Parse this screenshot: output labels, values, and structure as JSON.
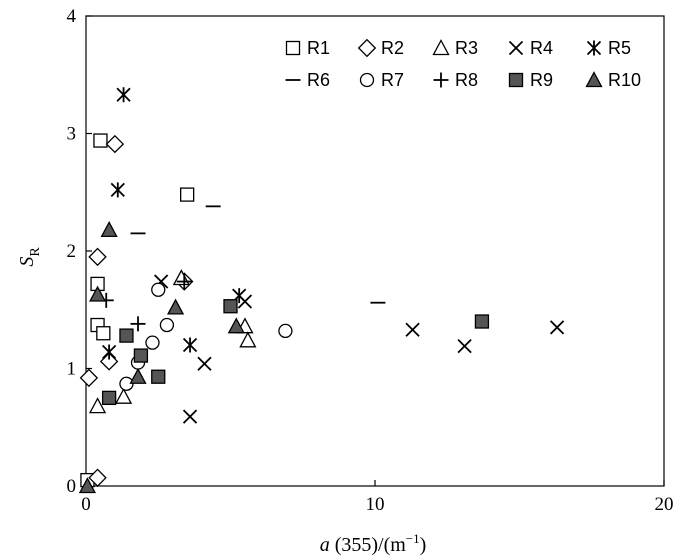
{
  "chart_data": {
    "type": "scatter",
    "title": "",
    "xlabel": {
      "italic": "a",
      "rest": " (355)/(m",
      "sup": "−1",
      "close": ")"
    },
    "ylabel": {
      "main": "S",
      "sub": "R"
    },
    "xlim": [
      0,
      20
    ],
    "ylim": [
      0,
      4
    ],
    "xticks": [
      "0",
      "10",
      "20"
    ],
    "yticks": [
      "0",
      "1",
      "2",
      "3",
      "4"
    ],
    "grid": false,
    "legend_position": "top-right",
    "series": [
      {
        "name": "R1",
        "marker": "square-open",
        "points": [
          [
            0.5,
            2.94
          ],
          [
            0.4,
            1.72
          ],
          [
            0.4,
            1.37
          ],
          [
            0.6,
            1.3
          ],
          [
            3.5,
            2.48
          ],
          [
            0.05,
            0.05
          ]
        ]
      },
      {
        "name": "R2",
        "marker": "diamond-open",
        "points": [
          [
            1.0,
            2.91
          ],
          [
            0.4,
            1.95
          ],
          [
            0.8,
            1.06
          ],
          [
            0.1,
            0.92
          ],
          [
            0.4,
            0.07
          ],
          [
            3.4,
            1.74
          ]
        ]
      },
      {
        "name": "R3",
        "marker": "triangle-open",
        "points": [
          [
            1.3,
            0.76
          ],
          [
            0.4,
            0.68
          ],
          [
            5.5,
            1.36
          ],
          [
            5.6,
            1.24
          ],
          [
            3.3,
            1.77
          ]
        ]
      },
      {
        "name": "R4",
        "marker": "x",
        "points": [
          [
            2.6,
            1.74
          ],
          [
            4.1,
            1.04
          ],
          [
            3.6,
            0.59
          ],
          [
            5.5,
            1.57
          ],
          [
            11.3,
            1.33
          ],
          [
            13.1,
            1.19
          ],
          [
            16.3,
            1.35
          ]
        ]
      },
      {
        "name": "R5",
        "marker": "asterisk",
        "points": [
          [
            1.3,
            3.33
          ],
          [
            1.1,
            2.52
          ],
          [
            0.8,
            1.14
          ],
          [
            3.6,
            1.2
          ],
          [
            5.3,
            1.62
          ]
        ]
      },
      {
        "name": "R6",
        "marker": "dash",
        "points": [
          [
            1.8,
            2.15
          ],
          [
            4.4,
            2.38
          ],
          [
            10.1,
            1.56
          ]
        ]
      },
      {
        "name": "R7",
        "marker": "circle-open",
        "points": [
          [
            2.5,
            1.67
          ],
          [
            2.8,
            1.37
          ],
          [
            2.3,
            1.22
          ],
          [
            1.8,
            1.05
          ],
          [
            1.4,
            0.87
          ],
          [
            6.9,
            1.32
          ]
        ]
      },
      {
        "name": "R8",
        "marker": "plus",
        "points": [
          [
            0.7,
            1.58
          ],
          [
            1.8,
            1.38
          ],
          [
            3.4,
            1.74
          ]
        ]
      },
      {
        "name": "R9",
        "marker": "square-filled",
        "points": [
          [
            0.8,
            0.75
          ],
          [
            1.4,
            1.28
          ],
          [
            1.9,
            1.11
          ],
          [
            2.5,
            0.93
          ],
          [
            5.0,
            1.53
          ],
          [
            13.7,
            1.4
          ]
        ]
      },
      {
        "name": "R10",
        "marker": "triangle-filled",
        "points": [
          [
            0.8,
            2.18
          ],
          [
            0.4,
            1.63
          ],
          [
            1.8,
            0.93
          ],
          [
            3.1,
            1.52
          ],
          [
            5.2,
            1.36
          ],
          [
            0.05,
            0.0
          ]
        ]
      }
    ]
  }
}
